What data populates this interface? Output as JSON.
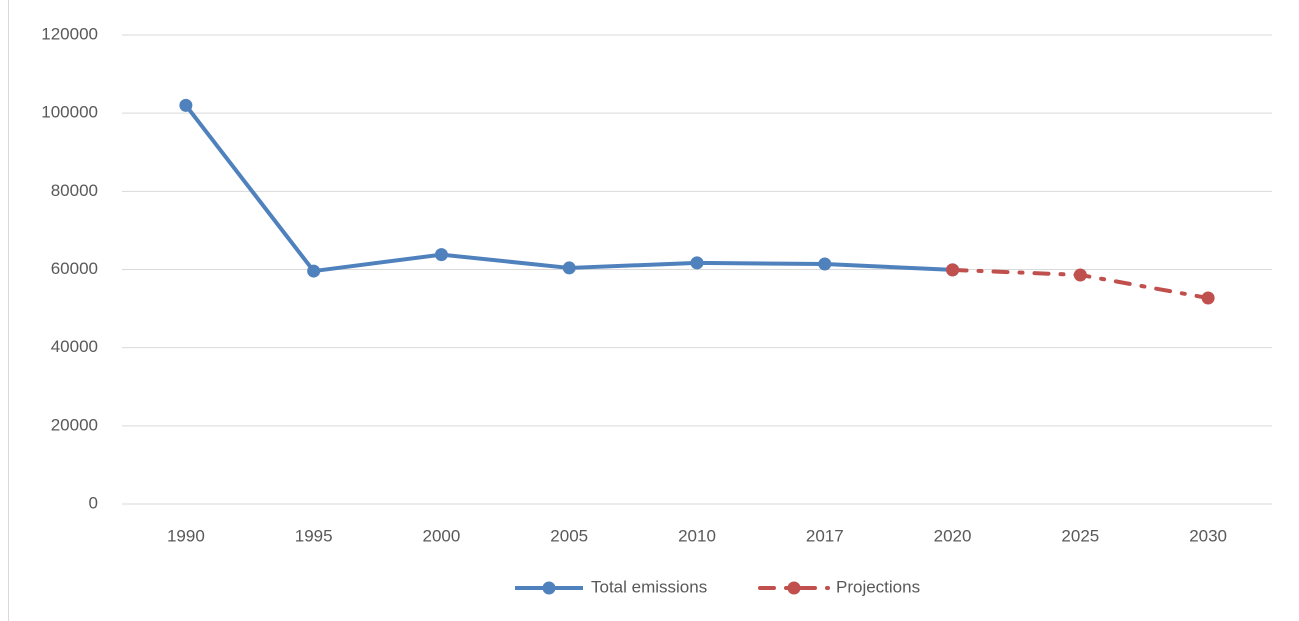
{
  "chart_data": {
    "type": "line",
    "categories": [
      "1990",
      "1995",
      "2000",
      "2005",
      "2010",
      "2017",
      "2020",
      "2025",
      "2030"
    ],
    "series": [
      {
        "name": "Total emissions",
        "color": "#4f81bd",
        "line_style": "solid",
        "values": [
          102000,
          59600,
          63800,
          60400,
          61700,
          61400,
          59900,
          null,
          null
        ]
      },
      {
        "name": "Projections",
        "color": "#c0504d",
        "line_style": "dashed",
        "values": [
          null,
          null,
          null,
          null,
          null,
          null,
          59900,
          58600,
          52700
        ]
      }
    ],
    "ylim": [
      0,
      120000
    ],
    "yticks": [
      0,
      20000,
      40000,
      60000,
      80000,
      100000,
      120000
    ],
    "grid": true,
    "legend": "bottom"
  }
}
